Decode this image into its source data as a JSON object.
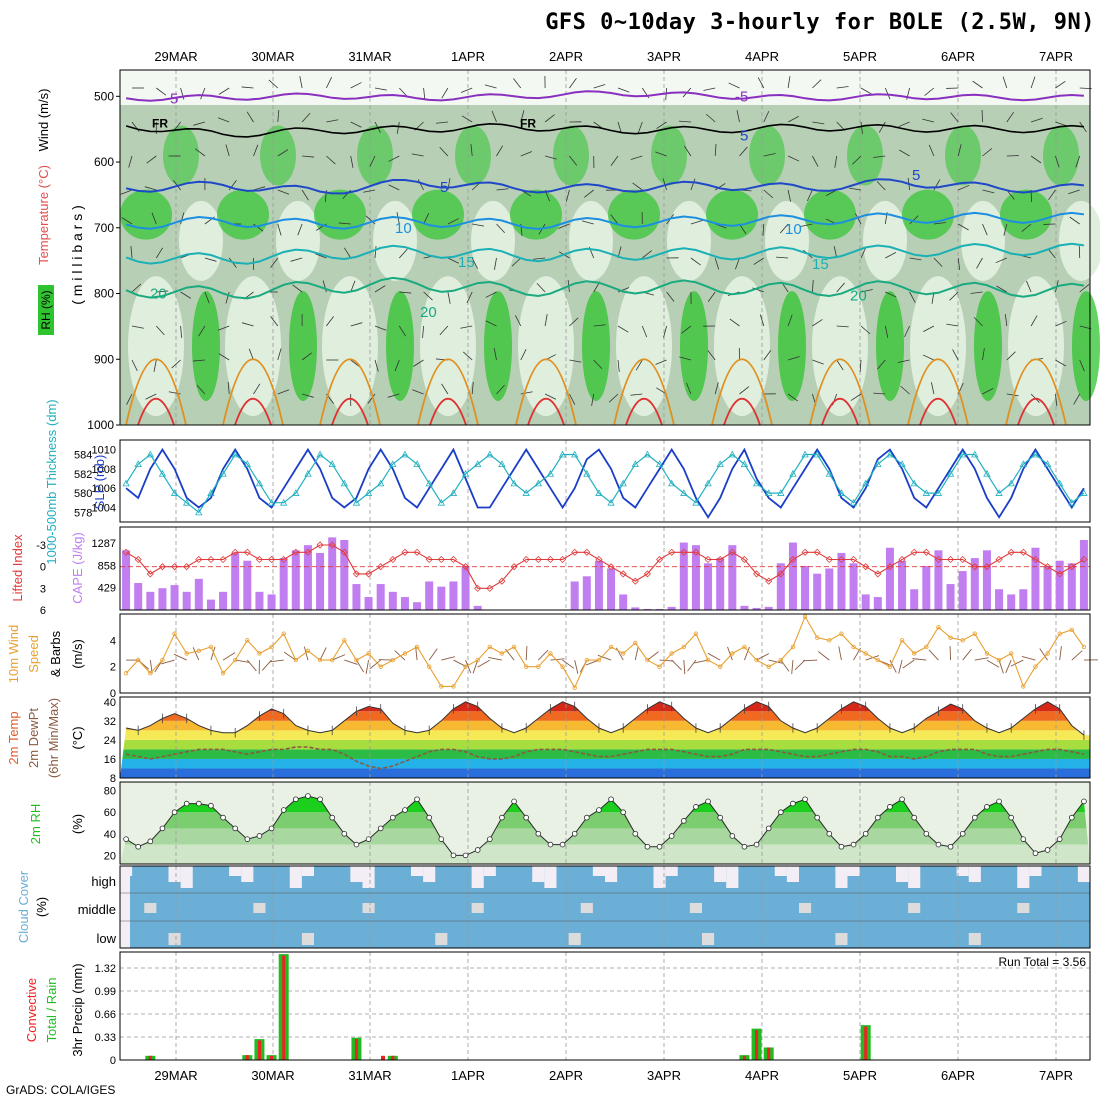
{
  "title": "GFS 0~10day 3-hourly for BOLE (2.5W, 9N)",
  "footer": "GrADS: COLA/IGES",
  "colors": {
    "rh_green": "#2fc42f",
    "rh_light": "#dfeedd",
    "rh_mid": "#b7cfb5",
    "isotherm_5": "#1f48c8",
    "isotherm_10": "#1c8fe0",
    "isotherm_15": "#1ab0b5",
    "isotherm_20": "#1aaa80",
    "isotherm_25": "#e09020",
    "isotherm_30": "#e03030",
    "isotherm_minus5": "#8a30c0",
    "freezing": "#000000",
    "slp": "#1a3ec8",
    "thickness": "#22b0c0",
    "cape": "#c07ef0",
    "lifted_index": "#e03a3a",
    "wind10": "#e8a030",
    "dewpoint": "#8a5a40",
    "rh2m": "#20c020",
    "cloud": "#6baed6",
    "precip_total": "#22bb22",
    "precip_conv": "#ee2222"
  },
  "chart_data": [
    {
      "id": "upper_air",
      "type": "heatmap",
      "panel_label": "RH (%)",
      "ylabel": "( m i l l i b a r s )",
      "side_labels": [
        "Wind (m/s)",
        "Temperature (°C)"
      ],
      "yticks": [
        500,
        600,
        700,
        800,
        900,
        1000
      ],
      "ylim": [
        460,
        1000
      ],
      "x_dates": [
        "29MAR",
        "30MAR",
        "31MAR",
        "1APR",
        "2APR",
        "3APR",
        "4APR",
        "5APR",
        "6APR",
        "7APR"
      ],
      "isotherms": [
        {
          "label": "-5",
          "color_key": "isotherm_minus5",
          "levels": [
            503,
            502,
            499,
            503,
            500,
            495,
            499,
            503,
            500,
            502
          ]
        },
        {
          "label": "FR",
          "color_key": "freezing",
          "levels": [
            545,
            558,
            552,
            550,
            546,
            552,
            551,
            547,
            549,
            550
          ]
        },
        {
          "label": "5",
          "color_key": "isotherm_5",
          "levels": [
            640,
            635,
            645,
            630,
            640,
            640,
            635,
            640,
            630,
            640
          ]
        },
        {
          "label": "10",
          "color_key": "isotherm_10",
          "levels": [
            695,
            690,
            695,
            690,
            695,
            692,
            690,
            688,
            685,
            685
          ]
        },
        {
          "label": "15",
          "color_key": "isotherm_15",
          "levels": [
            745,
            748,
            740,
            735,
            743,
            740,
            740,
            738,
            735,
            733
          ]
        },
        {
          "label": "20",
          "color_key": "isotherm_20",
          "levels": [
            795,
            800,
            790,
            785,
            795,
            790,
            790,
            795,
            790,
            795
          ]
        }
      ],
      "contour_labels": [
        "-5",
        "FR",
        "5",
        "10",
        "15",
        "20",
        "20",
        "-5",
        "FR",
        "5",
        "10",
        "15",
        "20",
        "5",
        "10",
        "15",
        "20"
      ]
    },
    {
      "id": "slp_thickness",
      "type": "line",
      "ylabel_left": "1000-500mb Thickness (dm)",
      "ylabel_right": "SLP (mb)",
      "yticks_thickness": [
        578,
        580,
        582,
        584
      ],
      "yticks_slp": [
        1004,
        1006,
        1008,
        1010
      ],
      "series": [
        {
          "name": "SLP (mb)",
          "values": [
            1006,
            1005,
            1008,
            1010,
            1008,
            1005,
            1004,
            1005,
            1008,
            1010,
            1008,
            1005,
            1004,
            1006,
            1008,
            1010,
            1008,
            1005,
            1004,
            1005,
            1008,
            1010,
            1008,
            1005,
            1004,
            1006,
            1008,
            1010,
            1007,
            1004,
            1004,
            1006,
            1008,
            1010,
            1008,
            1006,
            1004,
            1006,
            1009,
            1010,
            1008,
            1005,
            1004,
            1006,
            1008,
            1010,
            1008,
            1005,
            1003,
            1005,
            1008,
            1010,
            1007,
            1005,
            1004,
            1006,
            1008,
            1010,
            1008,
            1005,
            1004,
            1006,
            1009,
            1010,
            1008,
            1005,
            1004,
            1006,
            1008,
            1010,
            1008,
            1005,
            1003,
            1005,
            1008,
            1010,
            1008,
            1006,
            1004,
            1006
          ]
        },
        {
          "name": "Thickness (dm)",
          "values": [
            581,
            583,
            584,
            582,
            580,
            579,
            578,
            580,
            582,
            584,
            583,
            581,
            579,
            579,
            580,
            582,
            584,
            583,
            581,
            579,
            580,
            581,
            583,
            584,
            583,
            581,
            579,
            580,
            582,
            583,
            584,
            583,
            581,
            580,
            581,
            582,
            584,
            584,
            582,
            580,
            579,
            581,
            583,
            584,
            583,
            581,
            580,
            579,
            581,
            583,
            584,
            583,
            581,
            580,
            580,
            582,
            584,
            584,
            582,
            580,
            579,
            581,
            583,
            584,
            583,
            581,
            580,
            580,
            582,
            584,
            584,
            582,
            580,
            581,
            583,
            584,
            583,
            581,
            579,
            580
          ]
        }
      ]
    },
    {
      "id": "cape_li",
      "type": "bar",
      "ylabel_left": "Lifted Index",
      "ylabel_right": "CAPE (J/kg)",
      "yticks_li": [
        -3,
        0,
        3,
        6
      ],
      "yticks_cape": [
        429,
        858,
        1287
      ],
      "series": [
        {
          "name": "CAPE (J/kg)",
          "values": [
            1150,
            520,
            350,
            420,
            480,
            350,
            600,
            200,
            350,
            1100,
            950,
            350,
            300,
            1000,
            1150,
            1250,
            1100,
            1400,
            1350,
            500,
            250,
            500,
            350,
            250,
            150,
            550,
            450,
            550,
            850,
            80,
            0,
            0,
            0,
            0,
            0,
            0,
            0,
            550,
            650,
            950,
            800,
            300,
            50,
            20,
            20,
            60,
            1300,
            1250,
            900,
            1000,
            1250,
            80,
            40,
            60,
            900,
            1300,
            850,
            700,
            800,
            1100,
            900,
            300,
            250,
            1200,
            950,
            400,
            850,
            1150,
            500,
            750,
            1000,
            1150,
            400,
            300,
            400,
            1200,
            850,
            950,
            900,
            1350
          ]
        },
        {
          "name": "Lifted Index",
          "values": [
            -2,
            -1,
            1,
            0,
            0,
            0,
            -1,
            -1,
            -1,
            -2,
            -2,
            -1,
            -1,
            -1,
            -2,
            -2,
            -3,
            -3,
            -2,
            1,
            1,
            0,
            -1,
            -2,
            -2,
            -1,
            -1,
            -1,
            0,
            3,
            3,
            2,
            0,
            -1,
            -1,
            -1,
            -1,
            -2,
            -2,
            -1,
            0,
            1,
            2,
            1,
            -1,
            -2,
            -2,
            -2,
            -1,
            -1,
            -2,
            -1,
            1,
            2,
            1,
            -1,
            -2,
            -2,
            -1,
            -1,
            -1,
            0,
            1,
            0,
            -1,
            -2,
            -2,
            -1,
            -1,
            -1,
            0,
            0,
            -1,
            -2,
            -2,
            -1,
            0,
            1,
            0,
            -1
          ]
        }
      ]
    },
    {
      "id": "wind10m",
      "type": "line",
      "ylabel": "10m Wind Speed & Barbs (m/s)",
      "yticks": [
        0,
        2,
        4
      ],
      "ylim": [
        0,
        6
      ],
      "series": [
        {
          "name": "10m Wind Speed (m/s)",
          "values": [
            1.5,
            2.5,
            1.5,
            2.5,
            4.5,
            3.0,
            3.2,
            3.5,
            1.5,
            2.5,
            4.0,
            3.0,
            3.5,
            4.5,
            2.5,
            3.2,
            2.5,
            2.5,
            4.0,
            2.5,
            3.0,
            2.0,
            2.5,
            3.0,
            3.5,
            2.0,
            0.5,
            0.5,
            2.0,
            2.5,
            3.5,
            3.0,
            3.5,
            2.0,
            2.0,
            3.0,
            2.0,
            0.4,
            2.5,
            2.5,
            3.5,
            3.0,
            3.8,
            2.5,
            2.0,
            3.0,
            3.5,
            4.5,
            2.5,
            2.0,
            3.0,
            3.5,
            2.5,
            2.0,
            2.5,
            3.5,
            5.8,
            4.2,
            4.0,
            4.5,
            3.5,
            3.0,
            2.5,
            2.0,
            4.0,
            3.0,
            3.5,
            5.0,
            4.2,
            4.0,
            4.5,
            3.0,
            2.5,
            3.0,
            0.5,
            2.0,
            3.0,
            4.5,
            4.8,
            3.5
          ]
        }
      ]
    },
    {
      "id": "temp2m",
      "type": "area",
      "ylabel": "2m Temp 2m DewPt (6hr Min/Max) (°C)",
      "yticks": [
        8,
        16,
        24,
        32,
        40
      ],
      "ylim": [
        8,
        42
      ],
      "series": [
        {
          "name": "2m Temp",
          "values": [
            29,
            28,
            30,
            33,
            35,
            33,
            30,
            28,
            27,
            27,
            30,
            34,
            37,
            35,
            30,
            28,
            27,
            28,
            32,
            36,
            38,
            37,
            31,
            28,
            27,
            28,
            32,
            37,
            40,
            38,
            33,
            29,
            27,
            29,
            33,
            37,
            40,
            38,
            33,
            29,
            27,
            29,
            33,
            37,
            40,
            38,
            33,
            29,
            27,
            29,
            33,
            37,
            40,
            38,
            32,
            29,
            27,
            29,
            33,
            37,
            40,
            38,
            33,
            29,
            27,
            29,
            33,
            36,
            39,
            37,
            32,
            29,
            27,
            29,
            33,
            37,
            40,
            37,
            30,
            26
          ]
        },
        {
          "name": "2m DewPt",
          "values": [
            18,
            17,
            16,
            17,
            18,
            19,
            20,
            20,
            20,
            19,
            18,
            19,
            20,
            20,
            21,
            21,
            20,
            20,
            18,
            15,
            13,
            12,
            13,
            15,
            17,
            19,
            20,
            20,
            19,
            17,
            16,
            16,
            17,
            19,
            20,
            20,
            20,
            19,
            18,
            17,
            17,
            18,
            19,
            20,
            20,
            20,
            19,
            18,
            17,
            17,
            18,
            20,
            20,
            20,
            19,
            18,
            17,
            17,
            18,
            19,
            20,
            20,
            19,
            17,
            17,
            16,
            17,
            19,
            20,
            20,
            20,
            18,
            17,
            17,
            18,
            19,
            20,
            20,
            19,
            18
          ]
        }
      ]
    },
    {
      "id": "rh2m",
      "type": "area",
      "ylabel": "2m RH (%)",
      "yticks": [
        20,
        40,
        60,
        80
      ],
      "ylim": [
        12,
        88
      ],
      "series": [
        {
          "name": "2m RH (%)",
          "values": [
            35,
            28,
            33,
            45,
            60,
            68,
            68,
            66,
            55,
            45,
            35,
            38,
            45,
            62,
            72,
            75,
            72,
            55,
            40,
            30,
            35,
            45,
            55,
            62,
            72,
            55,
            35,
            20,
            20,
            25,
            35,
            55,
            70,
            55,
            40,
            30,
            30,
            40,
            55,
            62,
            72,
            60,
            40,
            28,
            28,
            38,
            52,
            65,
            70,
            55,
            38,
            28,
            30,
            45,
            60,
            68,
            72,
            55,
            40,
            28,
            30,
            40,
            55,
            65,
            72,
            55,
            40,
            30,
            28,
            40,
            55,
            65,
            70,
            55,
            35,
            22,
            25,
            35,
            55,
            70
          ]
        }
      ]
    },
    {
      "id": "cloud_cover",
      "type": "heatmap",
      "ylabel": "Cloud Cover (%)",
      "layers": [
        "high",
        "middle",
        "low"
      ]
    },
    {
      "id": "precip3h",
      "type": "bar",
      "ylabel_left": "Total / Rain Convective",
      "ylabel_right": "3hr Precip (mm)",
      "yticks": [
        0,
        0.33,
        0.66,
        0.99,
        1.32
      ],
      "ylim": [
        0,
        1.55
      ],
      "annotation": "Run Total = 3.56",
      "series": [
        {
          "name": "Total",
          "values": [
            0,
            0,
            0.06,
            0,
            0,
            0,
            0,
            0,
            0,
            0,
            0.07,
            0.3,
            0.07,
            1.52,
            0,
            0,
            0,
            0,
            0,
            0.32,
            0,
            0,
            0.06,
            0,
            0,
            0,
            0,
            0,
            0,
            0,
            0,
            0,
            0,
            0,
            0,
            0,
            0,
            0,
            0,
            0,
            0,
            0,
            0,
            0,
            0,
            0,
            0,
            0,
            0,
            0,
            0,
            0.07,
            0.45,
            0.18,
            0,
            0,
            0,
            0,
            0,
            0,
            0,
            0.5,
            0,
            0,
            0,
            0,
            0,
            0,
            0,
            0,
            0,
            0,
            0,
            0,
            0,
            0,
            0,
            0,
            0,
            0
          ]
        },
        {
          "name": "Convective",
          "values": [
            0,
            0,
            0.06,
            0,
            0,
            0,
            0,
            0,
            0,
            0,
            0.07,
            0.28,
            0.06,
            1.5,
            0,
            0,
            0,
            0,
            0,
            0.3,
            0,
            0,
            0.06,
            0,
            0,
            0,
            0,
            0,
            0,
            0,
            0,
            0,
            0,
            0,
            0,
            0,
            0,
            0,
            0,
            0,
            0,
            0,
            0,
            0,
            0,
            0,
            0,
            0,
            0,
            0,
            0,
            0.06,
            0.43,
            0.18,
            0,
            0,
            0,
            0,
            0,
            0,
            0,
            0.48,
            0,
            0,
            0,
            0,
            0,
            0,
            0,
            0,
            0,
            0,
            0,
            0,
            0,
            0,
            0,
            0,
            0,
            0
          ]
        }
      ]
    }
  ]
}
